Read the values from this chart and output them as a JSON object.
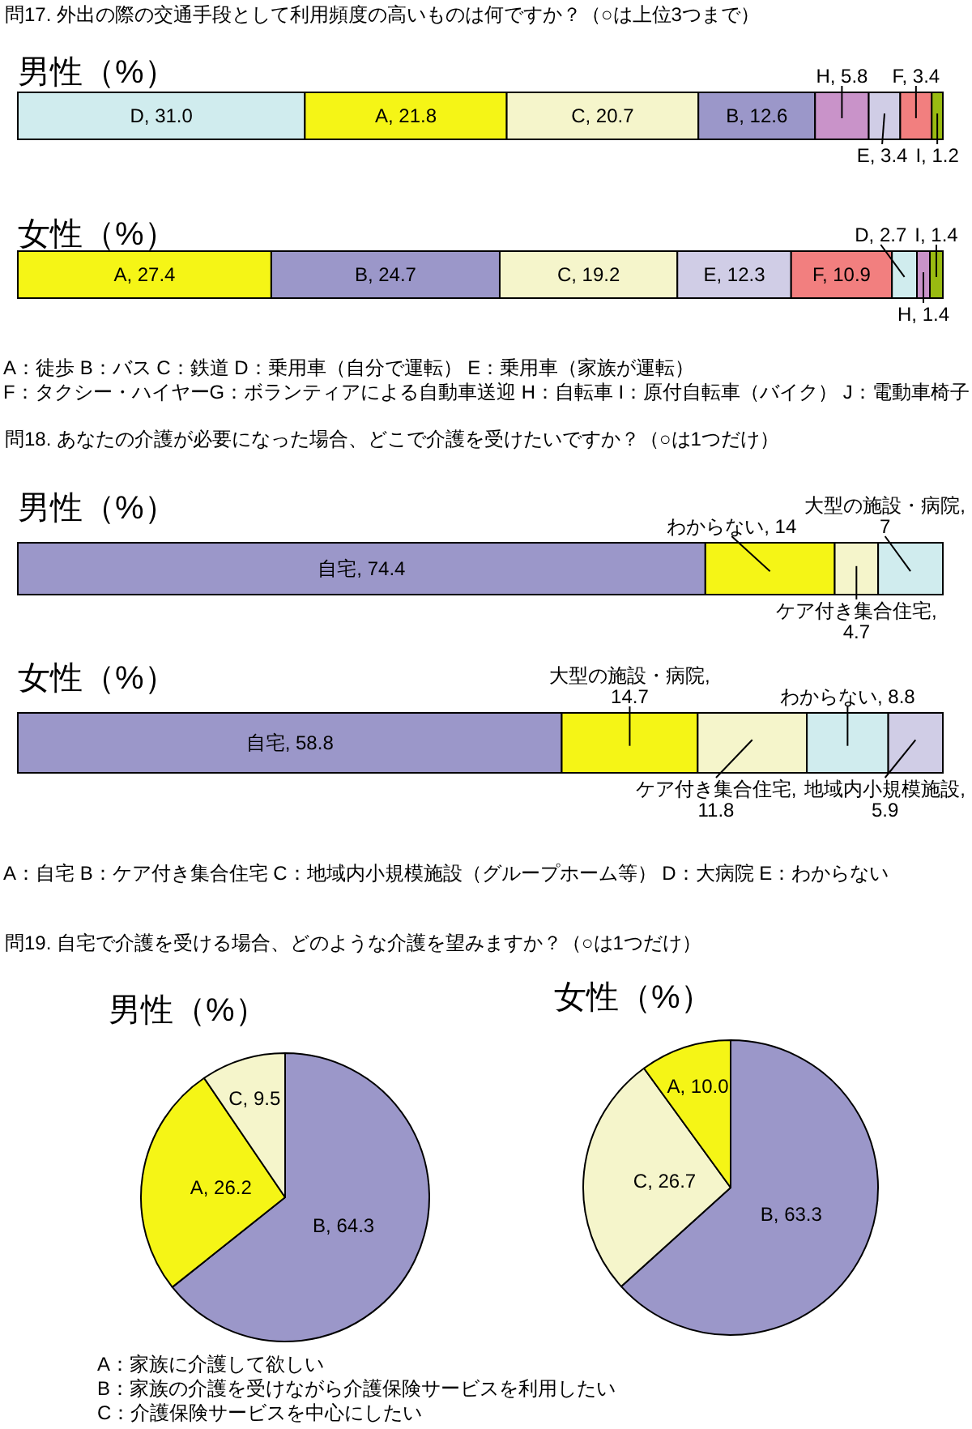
{
  "chart_data": [
    {
      "type": "bar",
      "orientation": "horizontal",
      "stacked": true,
      "title": "問17. 外出の際の交通手段として利用頻度の高いものは何ですか？（○は上位3つまで）",
      "subtitle": "男性（%）",
      "categories": [
        null
      ],
      "series": [
        {
          "color": "#d0ecee",
          "values": [
            31.0
          ],
          "value_labels": [
            "D, 31.0"
          ]
        },
        {
          "color": "#f5f516",
          "values": [
            21.8
          ],
          "value_labels": [
            "A, 21.8"
          ]
        },
        {
          "color": "#f5f5cb",
          "values": [
            20.7
          ],
          "value_labels": [
            "C, 20.7"
          ]
        },
        {
          "color": "#9b97c9",
          "values": [
            12.6
          ],
          "value_labels": [
            "B, 12.6"
          ]
        },
        {
          "color": "#c993c9",
          "values": [
            5.8
          ],
          "value_labels": [
            "H, 5.8"
          ]
        },
        {
          "color": "#d0cde6",
          "values": [
            3.4
          ],
          "value_labels": [
            "E, 3.4"
          ]
        },
        {
          "color": "#f27f7f",
          "values": [
            3.4
          ],
          "value_labels": [
            "F, 3.4"
          ]
        },
        {
          "color": "#99bb11",
          "values": [
            1.2
          ],
          "value_labels": [
            "I, 1.2"
          ]
        }
      ]
    },
    {
      "type": "bar",
      "orientation": "horizontal",
      "stacked": true,
      "subtitle": "女性（%）",
      "categories": [
        null
      ],
      "series": [
        {
          "color": "#f5f516",
          "values": [
            27.4
          ],
          "value_labels": [
            "A, 27.4"
          ]
        },
        {
          "color": "#9b97c9",
          "values": [
            24.7
          ],
          "value_labels": [
            "B, 24.7"
          ]
        },
        {
          "color": "#f5f5cb",
          "values": [
            19.2
          ],
          "value_labels": [
            "C, 19.2"
          ]
        },
        {
          "color": "#d0cde6",
          "values": [
            12.3
          ],
          "value_labels": [
            "E, 12.3"
          ]
        },
        {
          "color": "#f27f7f",
          "values": [
            10.9
          ],
          "value_labels": [
            "F, 10.9"
          ]
        },
        {
          "color": "#d0ecee",
          "values": [
            2.7
          ],
          "value_labels": [
            "D, 2.7"
          ]
        },
        {
          "color": "#c993c9",
          "values": [
            1.4
          ],
          "value_labels": [
            "H, 1.4"
          ]
        },
        {
          "color": "#99bb11",
          "values": [
            1.4
          ],
          "value_labels": [
            "I, 1.4"
          ]
        }
      ],
      "annotations": [
        "A：徒歩 B：バス C：鉄道 D：乗用車（自分で運転） E：乗用車（家族が運転）",
        "F：タクシー・ハイヤーG：ボランティアによる自動車送迎 H：自転車 I：原付自転車（バイク） J：電動車椅子"
      ]
    },
    {
      "type": "bar",
      "orientation": "horizontal",
      "stacked": true,
      "title": "問18. あなたの介護が必要になった場合、どこで介護を受けたいですか？（○は1つだけ）",
      "subtitle": "男性（%）",
      "categories": [
        null
      ],
      "series": [
        {
          "color": "#9b97c9",
          "values": [
            74.4
          ],
          "value_labels": [
            "自宅, 74.4"
          ]
        },
        {
          "color": "#f5f516",
          "values": [
            14
          ],
          "value_labels": [
            "わからない, 14"
          ]
        },
        {
          "color": "#f5f5cb",
          "values": [
            4.7
          ],
          "value_labels": [
            "ケア付き集合住宅, 4.7"
          ]
        },
        {
          "color": "#d0ecee",
          "values": [
            7
          ],
          "value_labels": [
            "大型の施設・病院, 7"
          ]
        }
      ]
    },
    {
      "type": "bar",
      "orientation": "horizontal",
      "stacked": true,
      "subtitle": "女性（%）",
      "categories": [
        null
      ],
      "series": [
        {
          "color": "#9b97c9",
          "values": [
            58.8
          ],
          "value_labels": [
            "自宅, 58.8"
          ]
        },
        {
          "color": "#f5f516",
          "values": [
            14.7
          ],
          "value_labels": [
            "大型の施設・病院, 14.7"
          ]
        },
        {
          "color": "#f5f5cb",
          "values": [
            11.8
          ],
          "value_labels": [
            "ケア付き集合住宅, 11.8"
          ]
        },
        {
          "color": "#d0ecee",
          "values": [
            8.8
          ],
          "value_labels": [
            "わからない, 8.8"
          ]
        },
        {
          "color": "#d0cde6",
          "values": [
            5.9
          ],
          "value_labels": [
            "地域内小規模施設, 5.9"
          ]
        }
      ],
      "annotations": [
        "A：自宅 B：ケア付き集合住宅 C：地域内小規模施設（グループホーム等） D：大病院 E：わからない"
      ]
    },
    {
      "type": "pie",
      "title": "問19. 自宅で介護を受ける場合、どのような介護を望みますか？（○は1つだけ）",
      "subtitle": "男性（%）",
      "values": [
        64.3,
        26.2,
        9.5
      ],
      "value_labels": [
        "B, 64.3",
        "A, 26.2",
        "C, 9.5"
      ],
      "colors": [
        "#9b97c9",
        "#f5f516",
        "#f5f5cb"
      ]
    },
    {
      "type": "pie",
      "subtitle": "女性（%）",
      "values": [
        63.3,
        26.7,
        10.0
      ],
      "value_labels": [
        "B, 63.3",
        "C, 26.7",
        "A, 10.0"
      ],
      "colors": [
        "#9b97c9",
        "#f5f5cb",
        "#f5f516"
      ],
      "annotations": [
        "A：家族に介護して欲しい",
        "B：家族の介護を受けながら介護保険サービスを利用したい",
        "C：介護保険サービスを中心にしたい"
      ]
    }
  ]
}
